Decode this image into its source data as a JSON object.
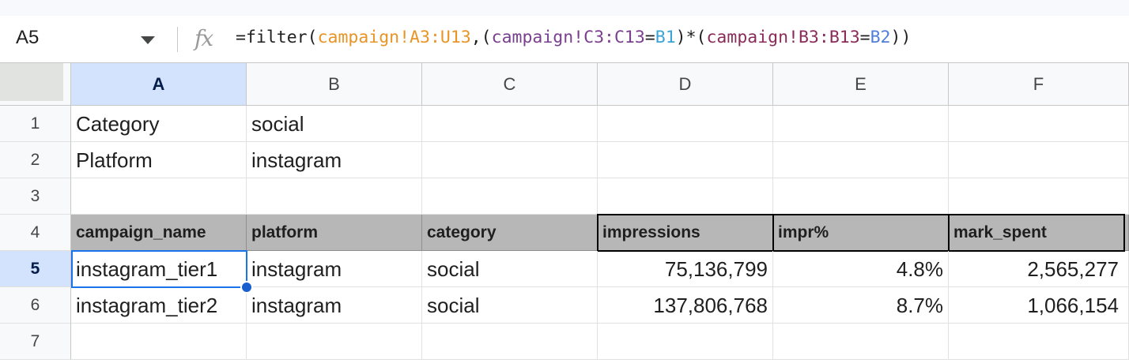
{
  "formula_bar": {
    "name_box": "A5",
    "fx_label": "fx",
    "formula": {
      "p1": "=filter(",
      "r1": "campaign!A3:U13",
      "p2": ",(",
      "r2": "campaign!C3:C13",
      "p3": "=",
      "ref1": "B1",
      "p4": ")*(",
      "r3": "campaign!B3:B13",
      "p5": "=",
      "ref2": "B2",
      "p6": "))"
    }
  },
  "columns": [
    "A",
    "B",
    "C",
    "D",
    "E",
    "F"
  ],
  "rows": [
    "1",
    "2",
    "3",
    "4",
    "5",
    "6",
    "7"
  ],
  "active_cell": {
    "column": "A",
    "row": "5"
  },
  "cells": {
    "r1": {
      "A": "Category",
      "B": "social"
    },
    "r2": {
      "A": "Platform",
      "B": "instagram"
    },
    "r4": {
      "A": "campaign_name",
      "B": "platform",
      "C": "category",
      "D": "impressions",
      "E": "impr%",
      "F": "mark_spent"
    },
    "r5": {
      "A": "instagram_tier1",
      "B": "instagram",
      "C": "social",
      "D": "75,136,799",
      "E": "4.8%",
      "F": "2,565,277"
    },
    "r6": {
      "A": "instagram_tier2",
      "B": "instagram",
      "C": "social",
      "D": "137,806,768",
      "E": "8.7%",
      "F": "1,066,154"
    }
  },
  "colors": {
    "header_fill": "#b7b7b7",
    "selection": "#1a73e8",
    "active_header": "#d3e3fd"
  }
}
